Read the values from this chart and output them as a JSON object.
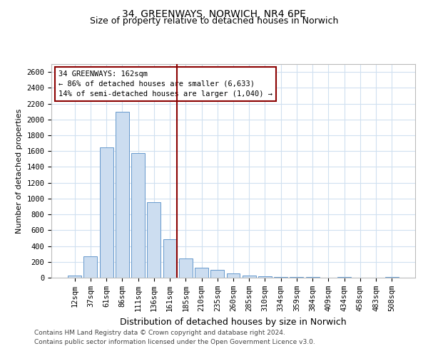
{
  "title": "34, GREENWAYS, NORWICH, NR4 6PE",
  "subtitle": "Size of property relative to detached houses in Norwich",
  "xlabel": "Distribution of detached houses by size in Norwich",
  "ylabel": "Number of detached properties",
  "categories": [
    "12sqm",
    "37sqm",
    "61sqm",
    "86sqm",
    "111sqm",
    "136sqm",
    "161sqm",
    "185sqm",
    "210sqm",
    "235sqm",
    "260sqm",
    "285sqm",
    "310sqm",
    "334sqm",
    "359sqm",
    "384sqm",
    "409sqm",
    "434sqm",
    "458sqm",
    "483sqm",
    "508sqm"
  ],
  "values": [
    25,
    270,
    1650,
    2100,
    1575,
    950,
    490,
    240,
    125,
    100,
    55,
    30,
    15,
    10,
    8,
    5,
    3,
    5,
    3,
    2,
    5
  ],
  "bar_color": "#ccddf0",
  "bar_edge_color": "#6699cc",
  "vline_x_index": 6,
  "vline_color": "#8b0000",
  "annotation_line1": "34 GREENWAYS: 162sqm",
  "annotation_line2": "← 86% of detached houses are smaller (6,633)",
  "annotation_line3": "14% of semi-detached houses are larger (1,040) →",
  "annotation_box_edgecolor": "#8b0000",
  "ylim": [
    0,
    2700
  ],
  "yticks": [
    0,
    200,
    400,
    600,
    800,
    1000,
    1200,
    1400,
    1600,
    1800,
    2000,
    2200,
    2400,
    2600
  ],
  "grid_color": "#d0e0f0",
  "background_color": "#ffffff",
  "title_fontsize": 10,
  "subtitle_fontsize": 9,
  "ylabel_fontsize": 8,
  "xlabel_fontsize": 9,
  "tick_fontsize": 7.5,
  "footer_line1": "Contains HM Land Registry data © Crown copyright and database right 2024.",
  "footer_line2": "Contains public sector information licensed under the Open Government Licence v3.0."
}
